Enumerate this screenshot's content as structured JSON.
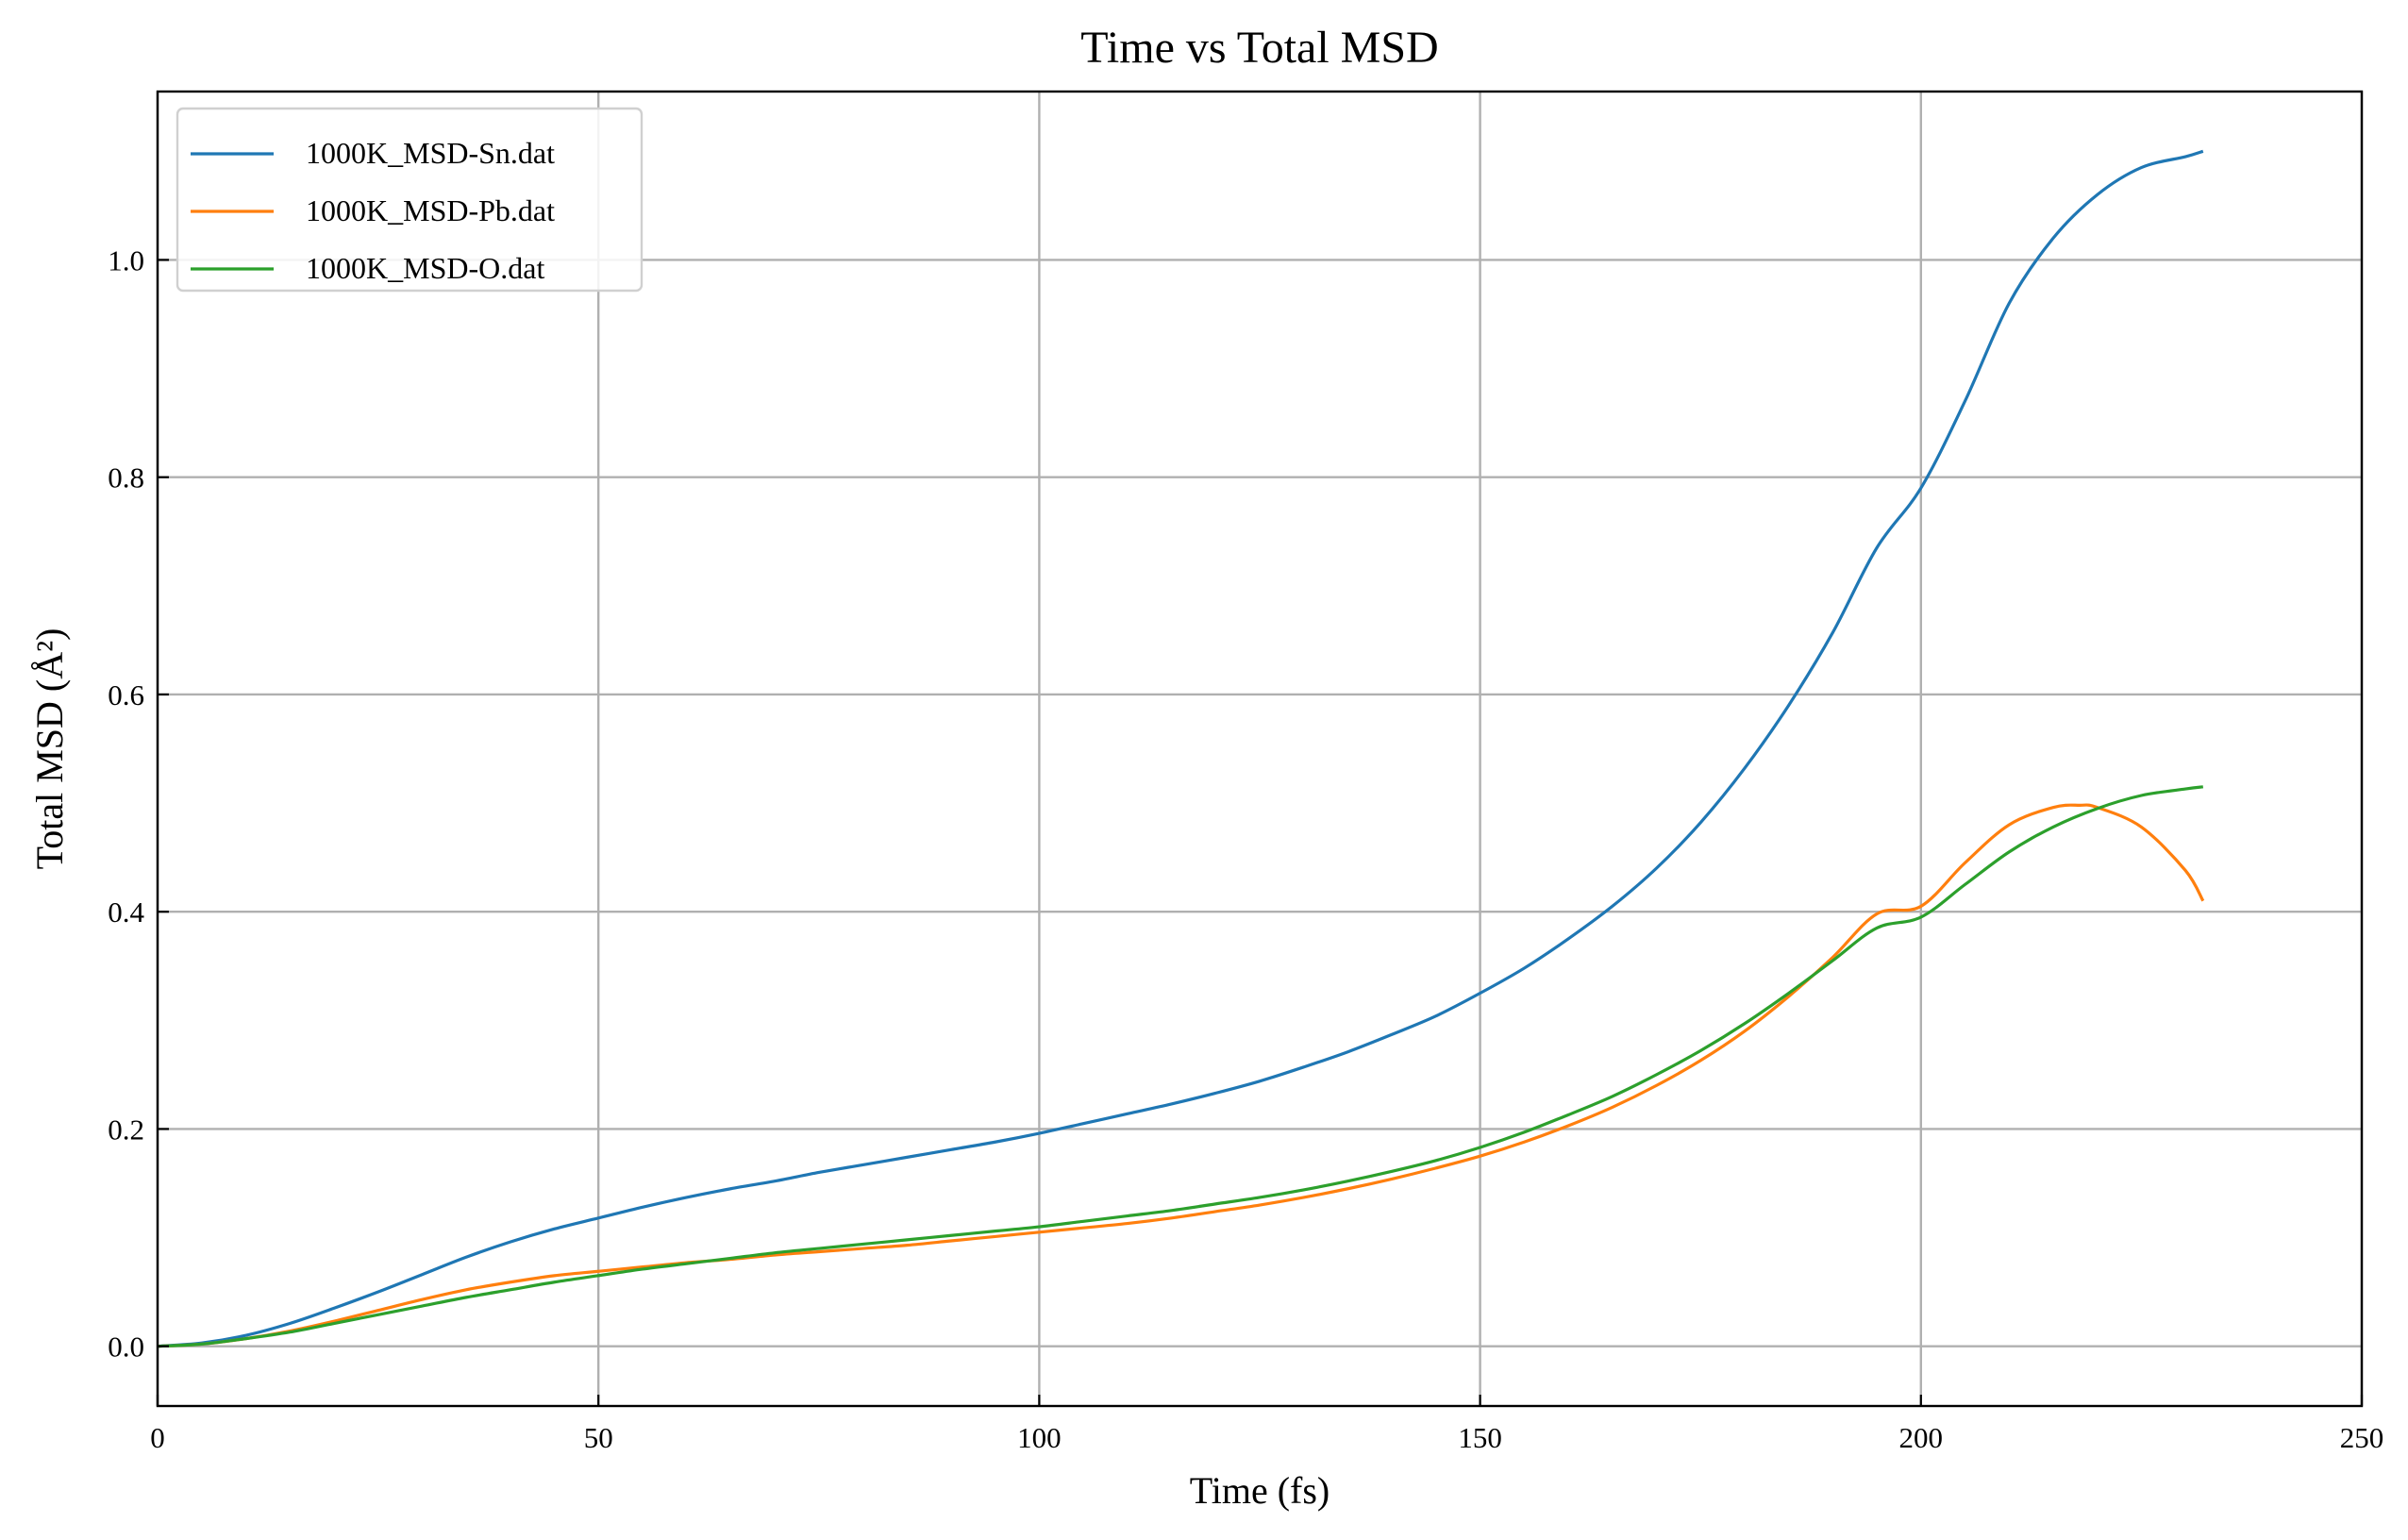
{
  "chart_data": {
    "type": "line",
    "title": "Time vs Total MSD",
    "xlabel": "Time (fs)",
    "ylabel": "Total MSD (Å²)",
    "xlim": [
      0,
      250
    ],
    "ylim": [
      -0.055,
      1.155
    ],
    "xticks": [
      0,
      50,
      100,
      150,
      200,
      250
    ],
    "xtick_labels": [
      "0",
      "50",
      "100",
      "150",
      "200",
      "250"
    ],
    "yticks": [
      0.0,
      0.2,
      0.4,
      0.6,
      0.8,
      1.0
    ],
    "ytick_labels": [
      "0.0",
      "0.2",
      "0.4",
      "0.6",
      "0.8",
      "1.0"
    ],
    "grid": true,
    "legend_position": "top-left",
    "series": [
      {
        "name": "1000K_MSD-Sn.dat",
        "color": "#1f77b4",
        "x": [
          0,
          5,
          10,
          15,
          20,
          25,
          30,
          35,
          40,
          45,
          50,
          55,
          60,
          65,
          70,
          75,
          80,
          85,
          90,
          95,
          100,
          105,
          110,
          115,
          120,
          125,
          130,
          135,
          140,
          145,
          150,
          155,
          160,
          165,
          170,
          175,
          180,
          185,
          190,
          195,
          200,
          205,
          210,
          215,
          220,
          225,
          230,
          232
        ],
        "y": [
          0.0,
          0.003,
          0.01,
          0.021,
          0.035,
          0.05,
          0.066,
          0.082,
          0.096,
          0.108,
          0.118,
          0.128,
          0.137,
          0.145,
          0.152,
          0.16,
          0.167,
          0.174,
          0.181,
          0.188,
          0.196,
          0.205,
          0.214,
          0.223,
          0.233,
          0.244,
          0.257,
          0.271,
          0.287,
          0.304,
          0.325,
          0.348,
          0.375,
          0.405,
          0.44,
          0.482,
          0.532,
          0.59,
          0.657,
          0.735,
          0.79,
          0.87,
          0.96,
          1.02,
          1.06,
          1.085,
          1.095,
          1.1
        ]
      },
      {
        "name": "1000K_MSD-Pb.dat",
        "color": "#ff7f0e",
        "x": [
          0,
          5,
          10,
          15,
          20,
          25,
          30,
          35,
          40,
          45,
          50,
          55,
          60,
          65,
          70,
          75,
          80,
          85,
          90,
          95,
          100,
          105,
          110,
          115,
          120,
          125,
          130,
          135,
          140,
          145,
          150,
          155,
          160,
          165,
          170,
          175,
          180,
          185,
          190,
          195,
          200,
          205,
          210,
          215,
          218,
          220,
          225,
          230,
          232
        ],
        "y": [
          0.0,
          0.002,
          0.007,
          0.014,
          0.023,
          0.033,
          0.043,
          0.052,
          0.059,
          0.065,
          0.069,
          0.073,
          0.077,
          0.08,
          0.084,
          0.087,
          0.09,
          0.093,
          0.097,
          0.101,
          0.105,
          0.109,
          0.113,
          0.118,
          0.124,
          0.13,
          0.137,
          0.145,
          0.154,
          0.164,
          0.175,
          0.188,
          0.203,
          0.22,
          0.24,
          0.263,
          0.29,
          0.322,
          0.358,
          0.398,
          0.405,
          0.445,
          0.48,
          0.496,
          0.498,
          0.496,
          0.478,
          0.438,
          0.41
        ]
      },
      {
        "name": "1000K_MSD-O.dat",
        "color": "#2ca02c",
        "x": [
          0,
          5,
          10,
          15,
          20,
          25,
          30,
          35,
          40,
          45,
          50,
          55,
          60,
          65,
          70,
          75,
          80,
          85,
          90,
          95,
          100,
          105,
          110,
          115,
          120,
          125,
          130,
          135,
          140,
          145,
          150,
          155,
          160,
          165,
          170,
          175,
          180,
          185,
          190,
          195,
          200,
          205,
          210,
          215,
          220,
          225,
          230,
          232
        ],
        "y": [
          0.0,
          0.002,
          0.007,
          0.013,
          0.021,
          0.029,
          0.037,
          0.045,
          0.052,
          0.059,
          0.065,
          0.071,
          0.076,
          0.081,
          0.086,
          0.09,
          0.094,
          0.098,
          0.102,
          0.106,
          0.11,
          0.115,
          0.12,
          0.125,
          0.131,
          0.137,
          0.144,
          0.152,
          0.161,
          0.171,
          0.183,
          0.197,
          0.213,
          0.23,
          0.25,
          0.272,
          0.297,
          0.325,
          0.355,
          0.385,
          0.395,
          0.425,
          0.455,
          0.478,
          0.495,
          0.507,
          0.513,
          0.515
        ]
      }
    ]
  }
}
